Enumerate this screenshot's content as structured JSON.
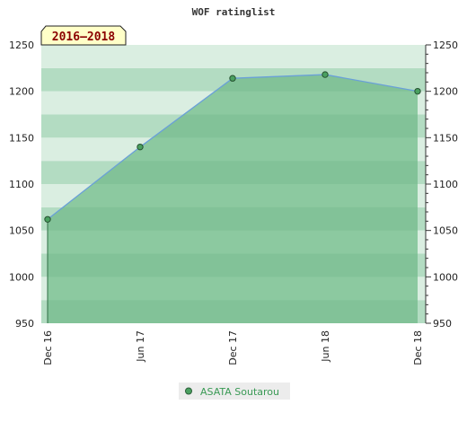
{
  "chart_data": {
    "type": "area",
    "title": "WOF ratinglist",
    "period_label": "2016–2018",
    "x_categories": [
      "Dec 16",
      "Jun 17",
      "Dec 17",
      "Jun 18",
      "Dec 18"
    ],
    "series": [
      {
        "name": "ASATA Soutarou",
        "values": [
          1062,
          1140,
          1214,
          1218,
          1200
        ]
      }
    ],
    "ylim": [
      950,
      1250
    ],
    "y_ticks": [
      950,
      1000,
      1050,
      1100,
      1150,
      1200,
      1250
    ],
    "y_axis_both_sides": true,
    "legend_position": "bottom-center",
    "colors": {
      "fill": "#8cc9a0",
      "line": "#6aa0d8",
      "marker": "#4aa060",
      "bg_band_dark": "#b3dcc2",
      "bg_band_light": "#daeee1",
      "badge_bg": "#ffffc8",
      "badge_text": "#8b0000",
      "legend_text": "#3a9a55"
    }
  }
}
